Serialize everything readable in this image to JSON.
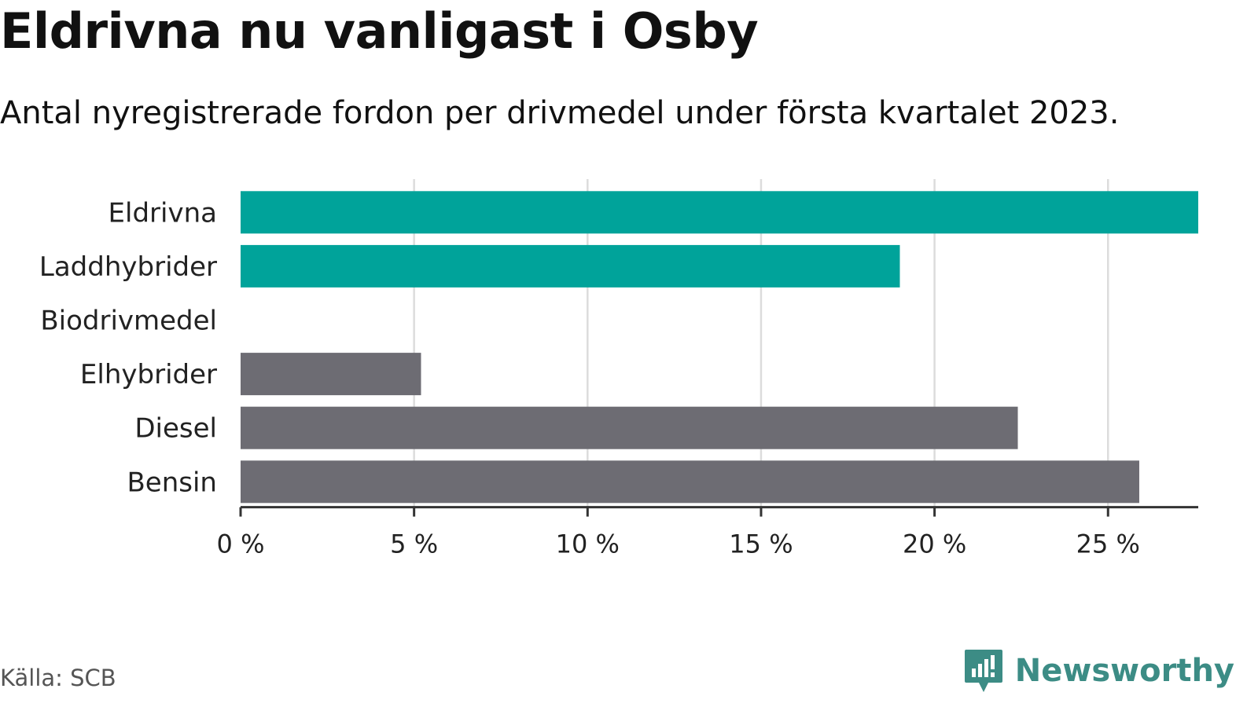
{
  "header": {
    "title": "Eldrivna nu vanligast i Osby",
    "subtitle": "Antal nyregistrerade fordon per drivmedel under första kvartalet 2023."
  },
  "footer": {
    "source": "Källa: SCB",
    "brand": "Newsworthy",
    "brand_icon": "bar-chart-icon"
  },
  "colors": {
    "highlight": "#00a39a",
    "other": "#6d6c73",
    "grid": "#dcdcdc",
    "axis": "#333333",
    "brand": "#3c8c85"
  },
  "chart_data": {
    "type": "bar",
    "orientation": "horizontal",
    "categories": [
      "Eldrivna",
      "Laddhybrider",
      "Biodrivmedel",
      "Elhybrider",
      "Diesel",
      "Bensin"
    ],
    "values": [
      27.6,
      19.0,
      0,
      5.2,
      22.4,
      25.9
    ],
    "highlight": [
      true,
      true,
      true,
      false,
      false,
      false
    ],
    "xlim": [
      0,
      27.6
    ],
    "xticks": [
      0,
      5,
      10,
      15,
      20,
      25
    ],
    "xtick_labels": [
      "0 %",
      "5 %",
      "10 %",
      "15 %",
      "20 %",
      "25 %"
    ],
    "grid": "vertical",
    "legend": "none",
    "xlabel": "",
    "ylabel": ""
  }
}
